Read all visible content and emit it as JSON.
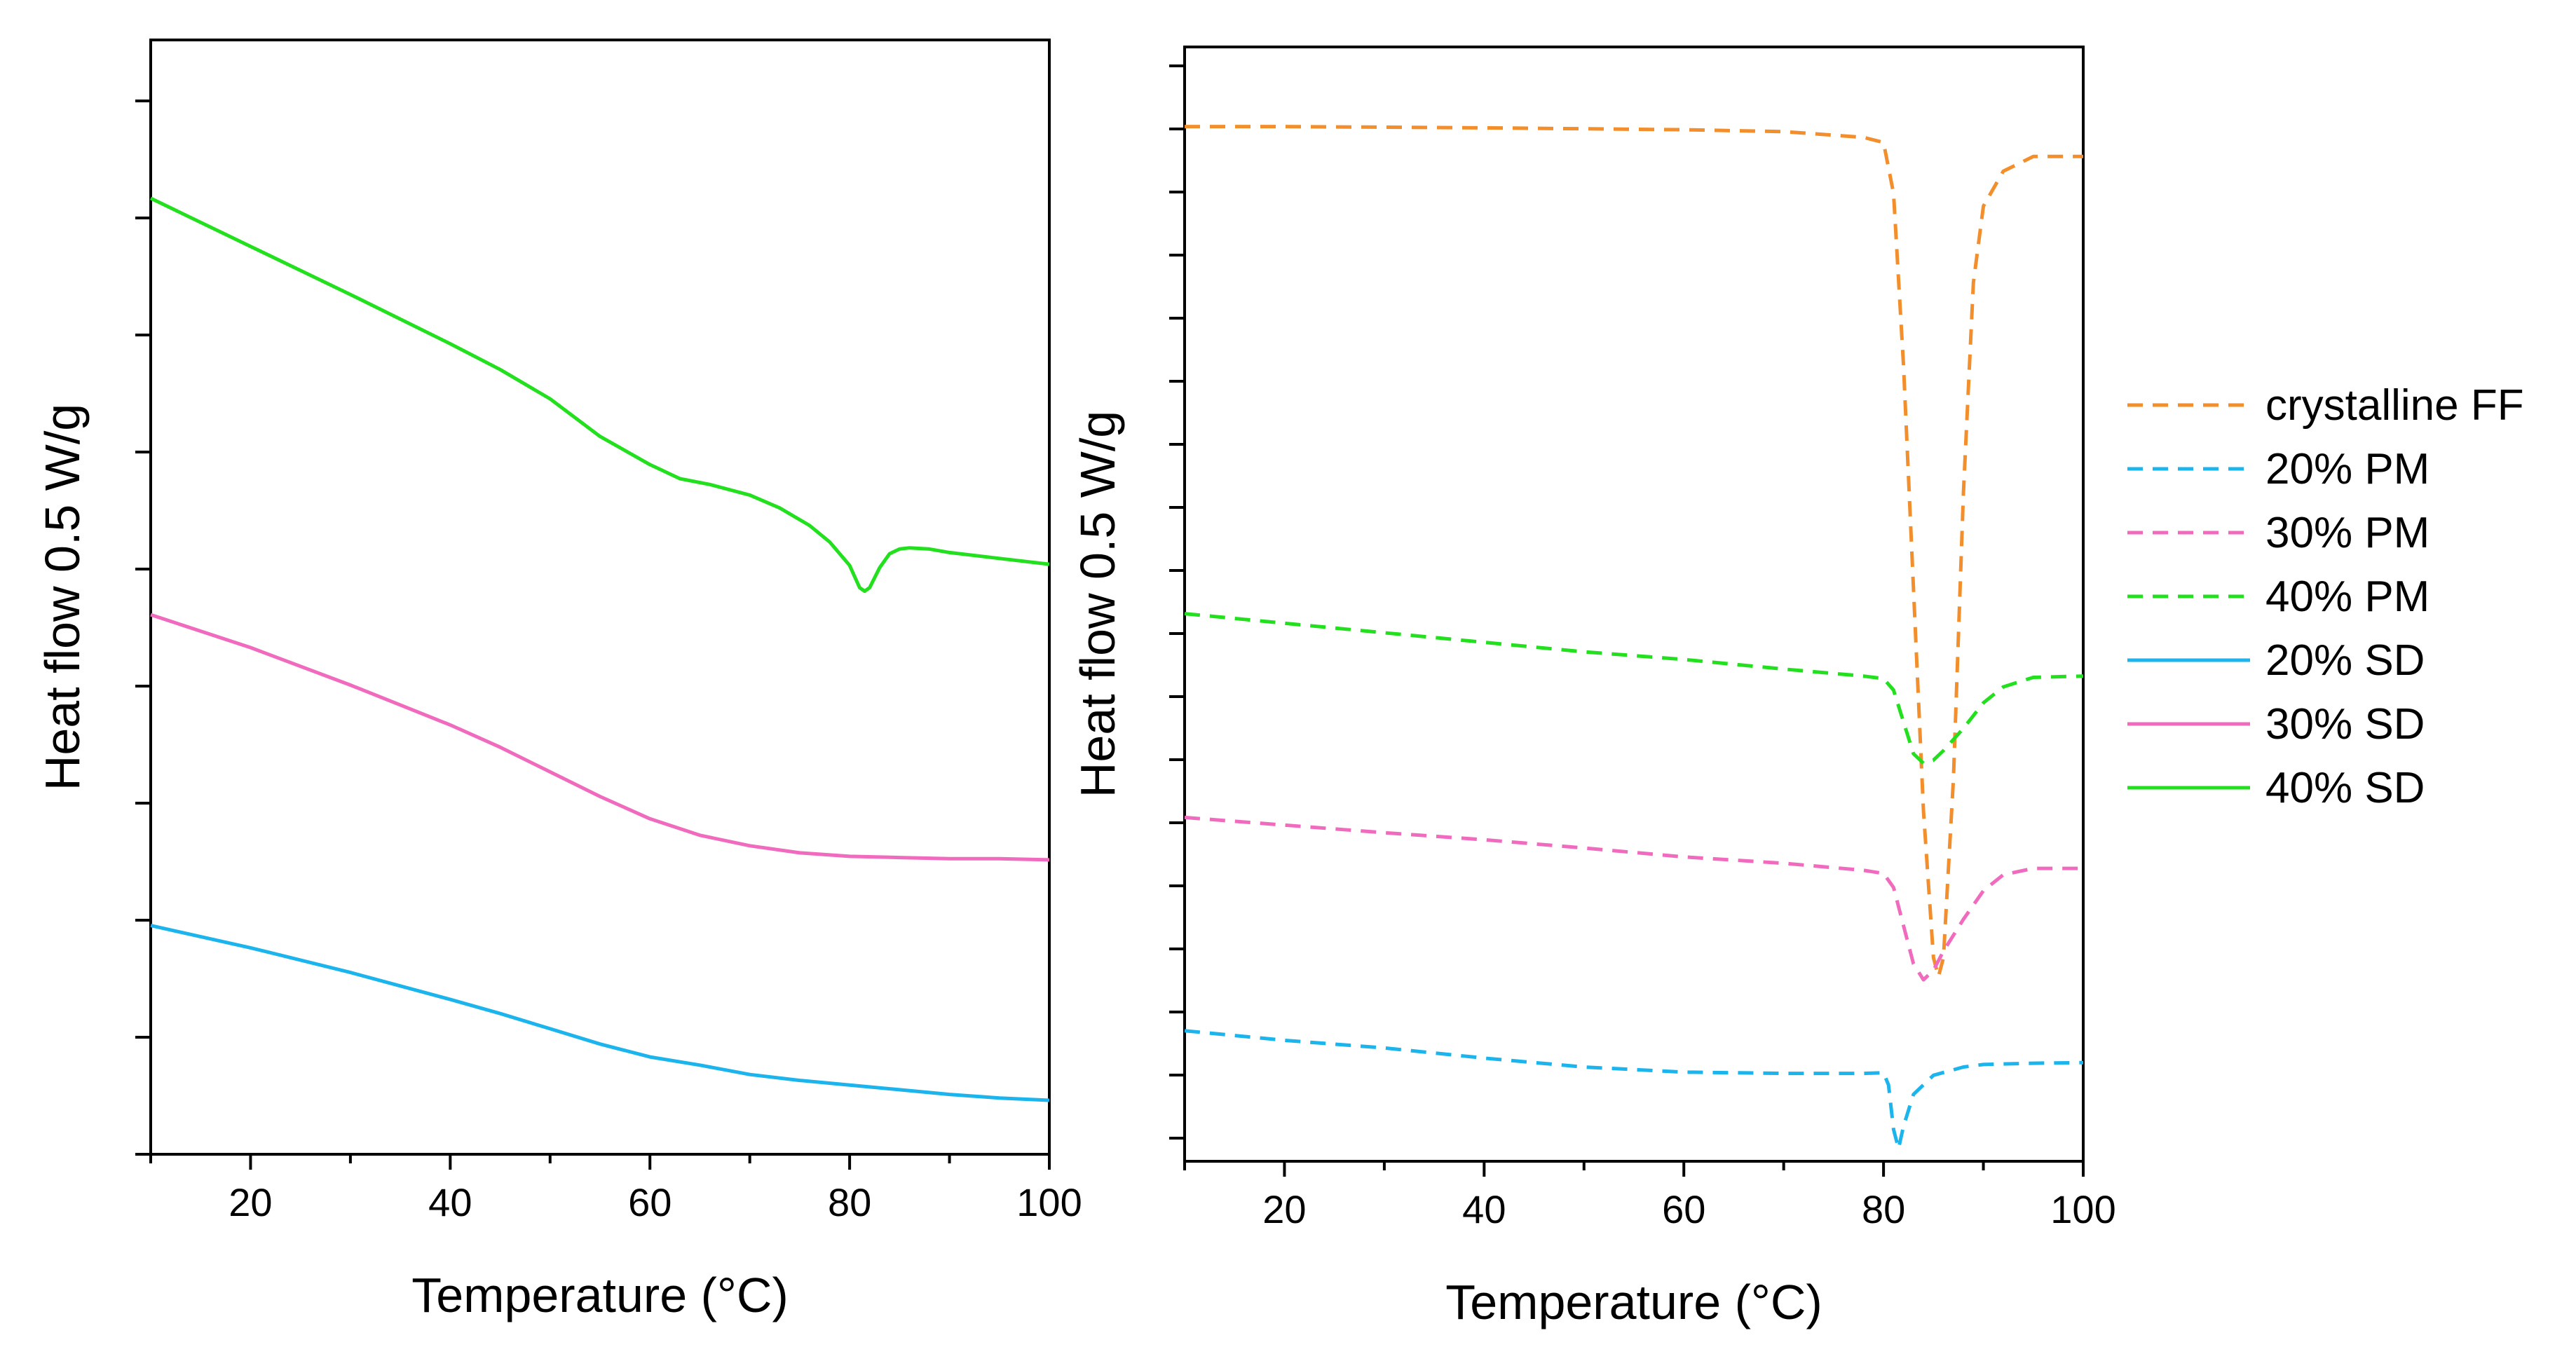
{
  "chart_data": [
    {
      "type": "line",
      "panel": "left",
      "xlabel": "Temperature (°C)",
      "ylabel": "Heat flow 0.5 W/g",
      "xlim": [
        10,
        100
      ],
      "ylim": [
        0,
        9.5
      ],
      "xticks": [
        20,
        40,
        60,
        80,
        100
      ],
      "yticks_labeled": false,
      "series": [
        {
          "ref": "40sd",
          "x": [
            10,
            20,
            30,
            40,
            45,
            50,
            55,
            60,
            63,
            66,
            70,
            73,
            76,
            78,
            80,
            81,
            81.5,
            82,
            83,
            84,
            85,
            86,
            88,
            90,
            95,
            100
          ],
          "y": [
            8.15,
            7.74,
            7.33,
            6.91,
            6.69,
            6.44,
            6.12,
            5.88,
            5.76,
            5.71,
            5.62,
            5.51,
            5.36,
            5.22,
            5.02,
            4.83,
            4.8,
            4.83,
            5.0,
            5.12,
            5.16,
            5.17,
            5.16,
            5.13,
            5.08,
            5.03
          ]
        },
        {
          "ref": "30sd",
          "x": [
            10,
            20,
            30,
            40,
            45,
            50,
            55,
            60,
            65,
            70,
            75,
            80,
            85,
            90,
            95,
            100
          ],
          "y": [
            4.6,
            4.32,
            4.0,
            3.66,
            3.47,
            3.26,
            3.05,
            2.86,
            2.72,
            2.63,
            2.57,
            2.54,
            2.53,
            2.52,
            2.52,
            2.51
          ]
        },
        {
          "ref": "20sd",
          "x": [
            10,
            20,
            30,
            40,
            45,
            50,
            55,
            60,
            65,
            70,
            75,
            80,
            85,
            90,
            95,
            100
          ],
          "y": [
            1.95,
            1.76,
            1.55,
            1.32,
            1.2,
            1.07,
            0.94,
            0.83,
            0.76,
            0.68,
            0.63,
            0.59,
            0.55,
            0.51,
            0.48,
            0.46
          ]
        }
      ]
    },
    {
      "type": "line",
      "panel": "right",
      "xlabel": "Temperature (°C)",
      "ylabel": "Heat flow 0.5 W/g",
      "xlim": [
        10,
        100
      ],
      "ylim": [
        0,
        17.5
      ],
      "xticks": [
        20,
        40,
        60,
        80,
        100
      ],
      "yticks_labeled": false,
      "series": [
        {
          "ref": "crystalline",
          "x": [
            10,
            20,
            40,
            60,
            70,
            78,
            80,
            81,
            82,
            83,
            84,
            85,
            85.5,
            86,
            87,
            88,
            89,
            90,
            92,
            95,
            100
          ],
          "y": [
            16.25,
            16.25,
            16.23,
            16.2,
            16.17,
            16.08,
            16.0,
            15.2,
            12.5,
            9.0,
            5.5,
            3.2,
            2.9,
            3.2,
            6.0,
            10.5,
            13.8,
            15.0,
            15.55,
            15.78,
            15.78
          ]
        },
        {
          "ref": "40pm",
          "x": [
            10,
            20,
            30,
            40,
            50,
            60,
            70,
            78,
            80,
            81,
            82,
            83,
            84,
            85,
            86,
            88,
            90,
            92,
            95,
            100
          ],
          "y": [
            8.6,
            8.45,
            8.3,
            8.15,
            8.0,
            7.88,
            7.73,
            7.62,
            7.58,
            7.4,
            6.9,
            6.4,
            6.25,
            6.3,
            6.45,
            6.8,
            7.2,
            7.45,
            7.6,
            7.62
          ]
        },
        {
          "ref": "30pm",
          "x": [
            10,
            20,
            30,
            40,
            50,
            60,
            70,
            78,
            80,
            81,
            82,
            83,
            84,
            85,
            86,
            88,
            90,
            92,
            95,
            100
          ],
          "y": [
            5.4,
            5.28,
            5.16,
            5.05,
            4.92,
            4.78,
            4.68,
            4.57,
            4.52,
            4.3,
            3.7,
            3.1,
            2.85,
            3.0,
            3.3,
            3.8,
            4.25,
            4.5,
            4.6,
            4.6
          ]
        },
        {
          "ref": "20pm",
          "x": [
            10,
            20,
            30,
            40,
            50,
            60,
            70,
            78,
            80,
            80.5,
            81,
            81.5,
            82,
            83,
            85,
            88,
            90,
            95,
            100
          ],
          "y": [
            2.05,
            1.9,
            1.78,
            1.62,
            1.48,
            1.4,
            1.38,
            1.38,
            1.39,
            1.2,
            0.5,
            0.2,
            0.55,
            1.05,
            1.35,
            1.48,
            1.52,
            1.54,
            1.55
          ]
        }
      ]
    }
  ],
  "legend": {
    "placement": "right",
    "entries": [
      {
        "ref": "crystalline",
        "name": "crystalline FF",
        "color": "#f28e2b",
        "dash": "dashed"
      },
      {
        "ref": "20pm",
        "name": "20% PM",
        "color": "#1cb4ec",
        "dash": "dashed"
      },
      {
        "ref": "30pm",
        "name": "30% PM",
        "color": "#f06bbd",
        "dash": "dashed"
      },
      {
        "ref": "40pm",
        "name": "40% PM",
        "color": "#22e01e",
        "dash": "dashed"
      },
      {
        "ref": "20sd",
        "name": "20% SD",
        "color": "#1cb4ec",
        "dash": "solid"
      },
      {
        "ref": "30sd",
        "name": "30% SD",
        "color": "#f06bbd",
        "dash": "solid"
      },
      {
        "ref": "40sd",
        "name": "40% SD",
        "color": "#22e01e",
        "dash": "solid"
      }
    ]
  }
}
